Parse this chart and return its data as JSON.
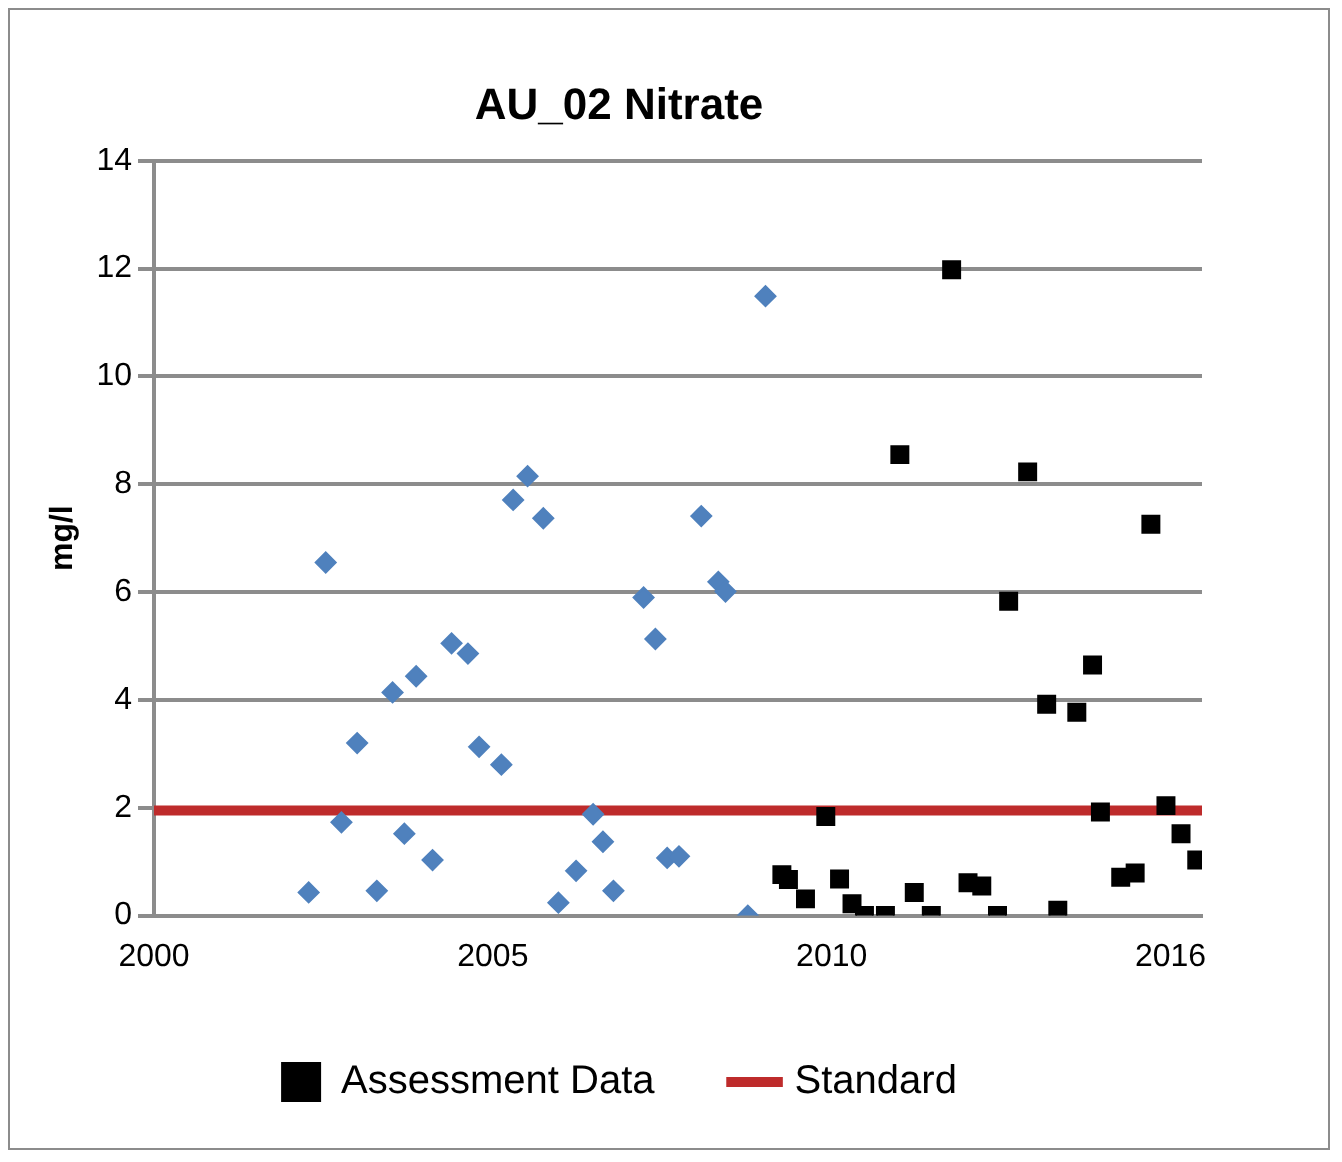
{
  "chart_data": {
    "type": "scatter",
    "title": "AU_02 Nitrate",
    "ylabel": "mg/l",
    "xlim": [
      2000,
      2015.99
    ],
    "xticks": [
      2000,
      {
        "value": 2005.17,
        "label": "2005"
      },
      {
        "value": 2010.34,
        "label": "2010"
      },
      {
        "value": 2015.51,
        "label": "2016"
      }
    ],
    "ylim": [
      0,
      14
    ],
    "yticks": [
      0,
      2,
      4,
      6,
      8,
      10,
      12,
      14
    ],
    "grid": "y",
    "legend": "bottom",
    "series": [
      {
        "color": "#4f81bd",
        "marker": "diamond",
        "x": [
          2002.36,
          2002.62,
          2002.86,
          2003.1,
          2003.4,
          2003.64,
          2003.82,
          2004.0,
          2004.25,
          2004.54,
          2004.79,
          2004.96,
          2005.3,
          2005.48,
          2005.7,
          2005.94,
          2006.17,
          2006.44,
          2006.7,
          2006.85,
          2007.01,
          2007.47,
          2007.65,
          2007.83,
          2008.01,
          2008.35,
          2008.61,
          2008.72,
          2009.06,
          2009.33
        ],
        "values": [
          0.43,
          6.55,
          1.73,
          3.2,
          0.46,
          4.14,
          1.52,
          4.44,
          1.03,
          5.05,
          4.86,
          3.13,
          2.8,
          7.71,
          8.15,
          7.37,
          0.24,
          0.83,
          1.88,
          1.37,
          0.46,
          5.9,
          5.13,
          1.07,
          1.1,
          7.41,
          6.19,
          6.01,
          0,
          11.49
        ]
      },
      {
        "name": "Assessment Data",
        "color": "#000000",
        "marker": "square",
        "x": [
          2009.58,
          2009.68,
          2009.94,
          2010.25,
          2010.46,
          2010.65,
          2010.84,
          2011.16,
          2011.38,
          2011.6,
          2011.86,
          2012.17,
          2012.42,
          2012.63,
          2012.87,
          2013.04,
          2013.33,
          2013.62,
          2013.79,
          2014.08,
          2014.32,
          2014.44,
          2014.75,
          2014.97,
          2015.21,
          2015.44,
          2015.67,
          2015.91
        ],
        "values": [
          0.76,
          0.67,
          0.31,
          1.84,
          0.68,
          0.22,
          0,
          0,
          8.55,
          0.43,
          0,
          11.98,
          0.61,
          0.55,
          0,
          5.83,
          8.23,
          3.92,
          0.1,
          3.77,
          4.65,
          1.92,
          0.71,
          0.79,
          7.26,
          2.04,
          1.52,
          1.03
        ]
      },
      {
        "name": "Standard",
        "type": "line",
        "color": "#be2b2b",
        "marker": "none",
        "line_style": "solid",
        "x": [
          2000,
          2015.98
        ],
        "values": [
          1.95,
          1.95
        ]
      }
    ]
  }
}
